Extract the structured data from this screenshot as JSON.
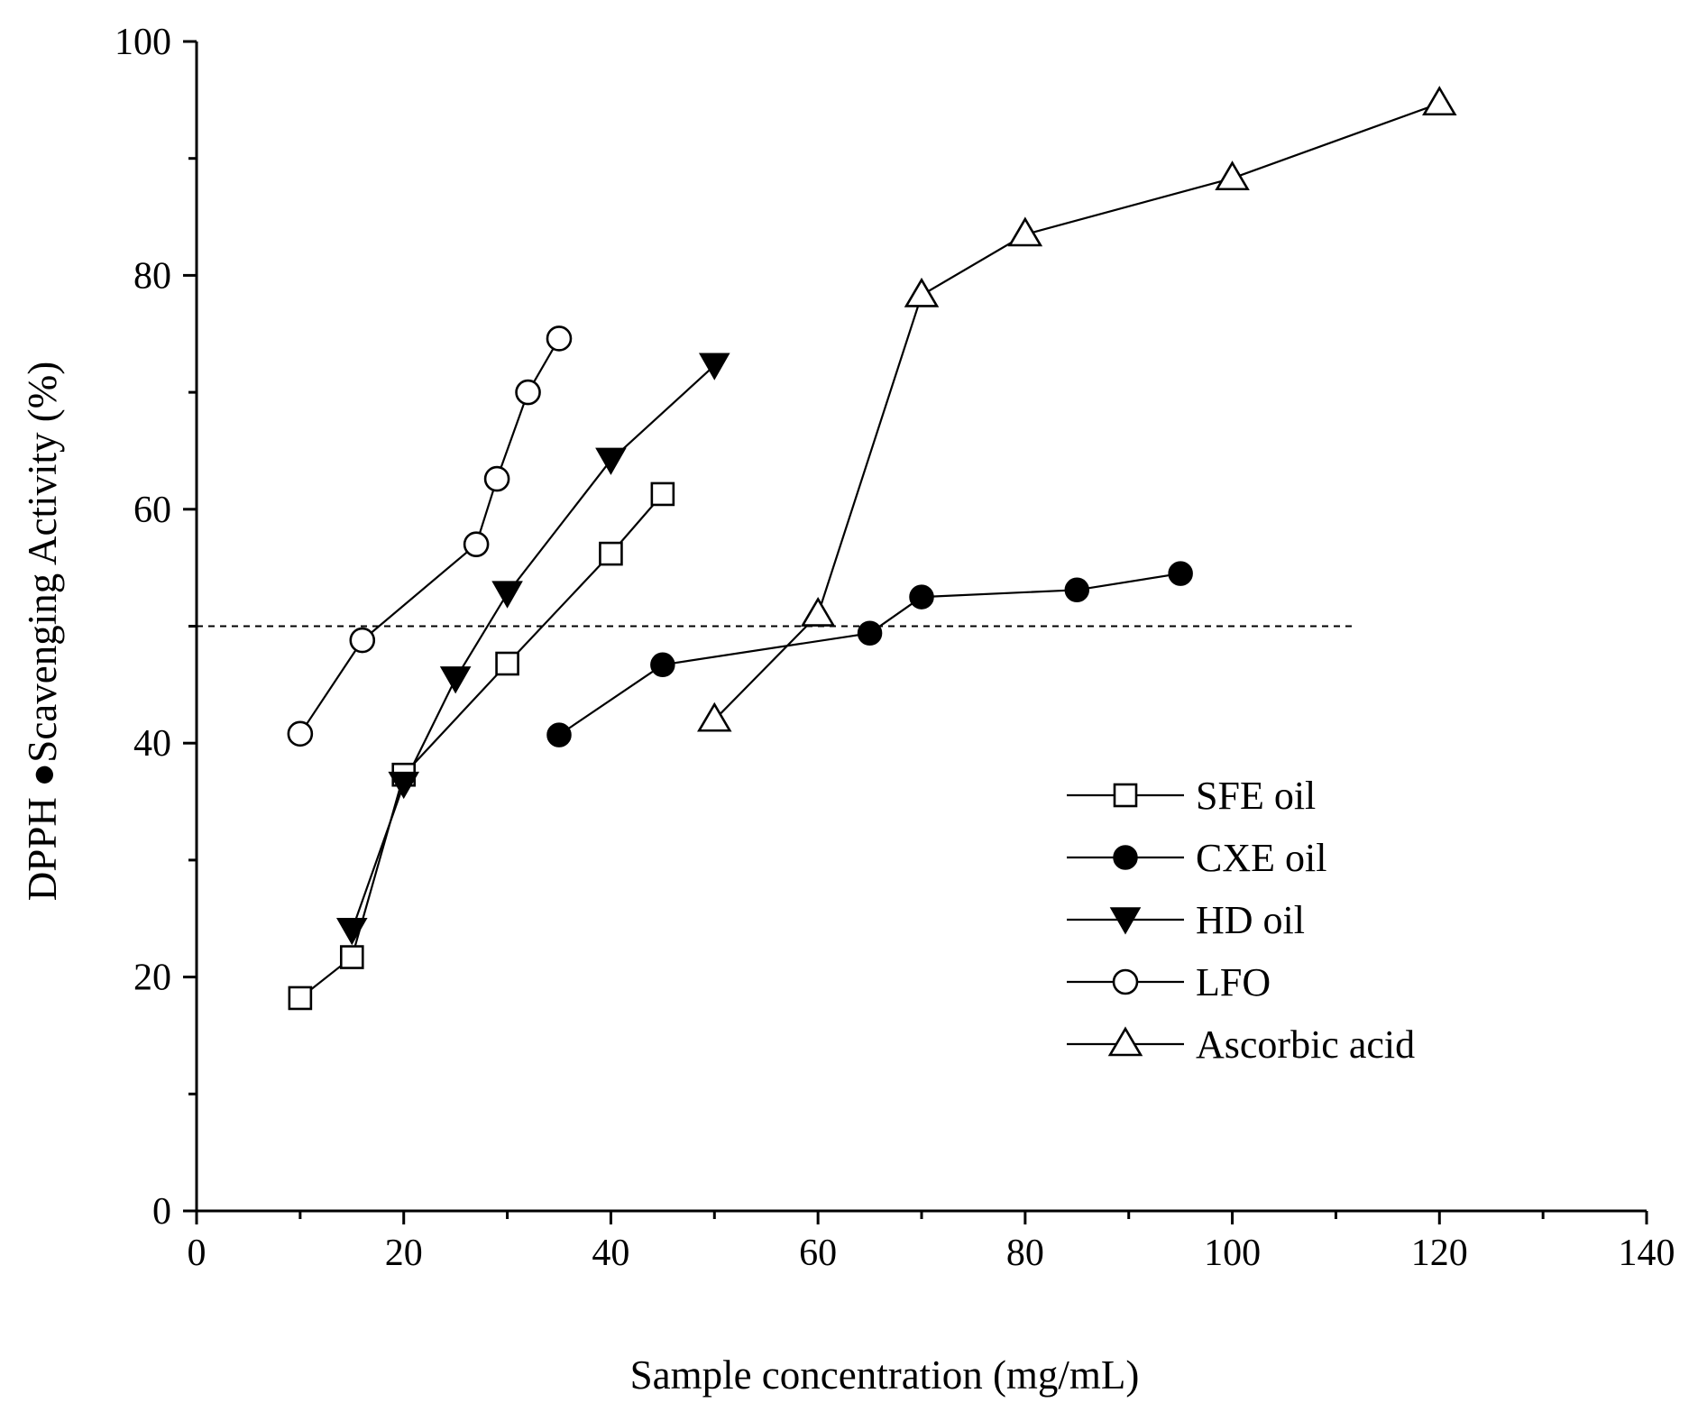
{
  "chart_data": {
    "type": "line",
    "title": "",
    "xlabel": "Sample concentration (mg/mL)",
    "ylabel": "DPPH ●Scavenging Activity (%)",
    "xlim": [
      0,
      140
    ],
    "ylim": [
      0,
      100
    ],
    "x_ticks": [
      0,
      20,
      40,
      60,
      80,
      100,
      120,
      140
    ],
    "y_ticks": [
      0,
      20,
      40,
      60,
      80,
      100
    ],
    "x_tick_labels": [
      "0",
      "20",
      "40",
      "60",
      "80",
      "100",
      "120",
      "140"
    ],
    "y_tick_labels": [
      "0",
      "20",
      "40",
      "60",
      "80",
      "100"
    ],
    "minor_x_step": 10,
    "minor_y_step": 10,
    "grid": false,
    "legend_position": "bottom-right",
    "reference_line": {
      "y": 50,
      "x_start": 0,
      "x_end": 112,
      "style": "dashed"
    },
    "series": [
      {
        "name": "SFE oil",
        "marker": "square-open",
        "points": [
          [
            10,
            18.2
          ],
          [
            15,
            21.7
          ],
          [
            20,
            37.3
          ],
          [
            30,
            46.8
          ],
          [
            40,
            56.2
          ],
          [
            45,
            61.3
          ]
        ]
      },
      {
        "name": "CXE oil",
        "marker": "circle-filled",
        "points": [
          [
            35,
            40.7
          ],
          [
            45,
            46.7
          ],
          [
            65,
            49.4
          ],
          [
            70,
            52.5
          ],
          [
            85,
            53.1
          ],
          [
            95,
            54.5
          ]
        ]
      },
      {
        "name": "HD oil",
        "marker": "triangle-down-filled",
        "points": [
          [
            15,
            24.0
          ],
          [
            20,
            36.5
          ],
          [
            25,
            45.5
          ],
          [
            30,
            52.8
          ],
          [
            40,
            64.2
          ],
          [
            50,
            72.3
          ]
        ]
      },
      {
        "name": "LFO",
        "marker": "circle-open",
        "points": [
          [
            10,
            40.8
          ],
          [
            16,
            48.8
          ],
          [
            27,
            57.0
          ],
          [
            29,
            62.6
          ],
          [
            32,
            70.0
          ],
          [
            35,
            74.6
          ]
        ]
      },
      {
        "name": "Ascorbic acid",
        "marker": "triangle-up-open",
        "points": [
          [
            50,
            42.0
          ],
          [
            60,
            51.0
          ],
          [
            70,
            78.3
          ],
          [
            80,
            83.5
          ],
          [
            100,
            88.3
          ],
          [
            120,
            94.7
          ]
        ]
      }
    ]
  }
}
